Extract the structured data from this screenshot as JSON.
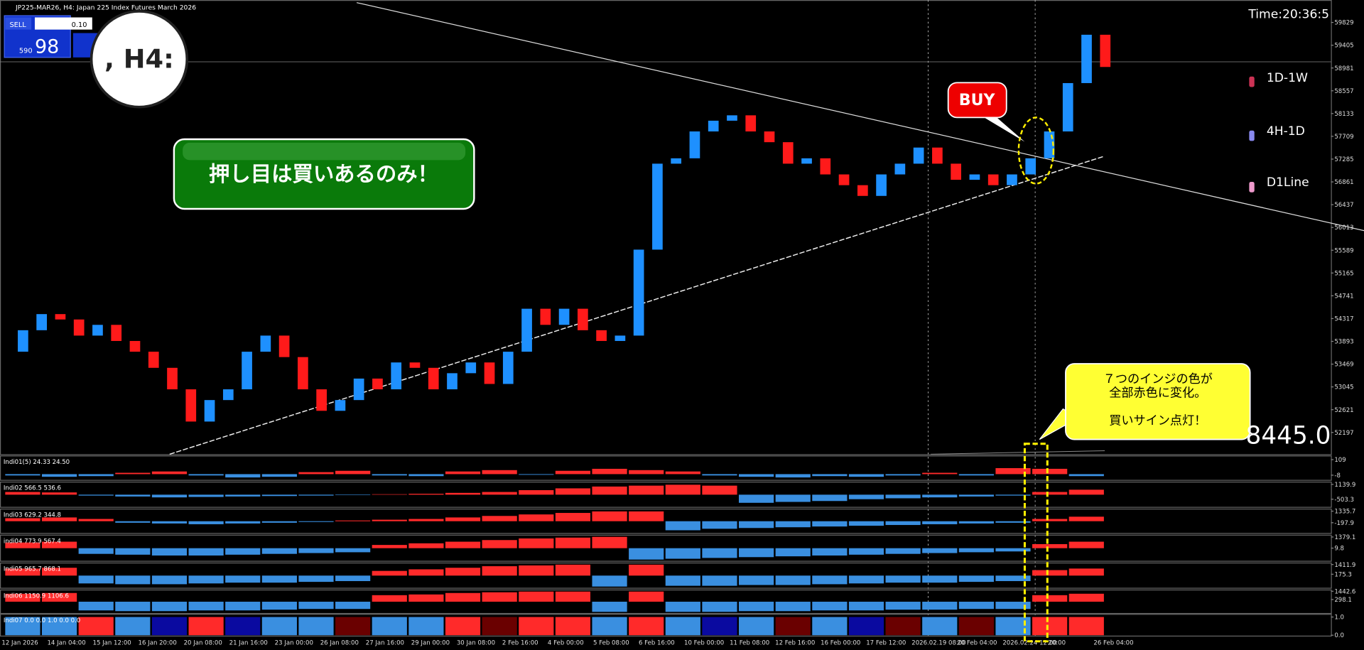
{
  "header": {
    "symbol": "JP225-MAR26, H4:  Japan 225 Index Futures March 2026",
    "sell": "SELL",
    "lot": "0.10",
    "price_small": "590",
    "price_big": "98",
    "magnifier": ", H4:",
    "time": "Time:20:36:5"
  },
  "annotations": {
    "slogan": "押し目は買いあるのみ！",
    "buy": "BUY",
    "callout": [
      "７つのインジの色が",
      "全部赤色に変化。",
      "買いサイン点灯！"
    ],
    "big_number": "8445.0"
  },
  "legend": [
    "1D-1W",
    "4H-1D",
    "D1Line"
  ],
  "chart_data": [
    {
      "type": "candlestick",
      "up_color": "#1e90ff",
      "down_color": "#ff1a1a",
      "values": [
        53700,
        54100,
        54400,
        54300,
        54000,
        54200,
        53900,
        53700,
        53400,
        53000,
        52400,
        52800,
        53000,
        53700,
        54000,
        53600,
        53000,
        52600,
        52800,
        53200,
        53000,
        53500,
        53400,
        53000,
        53300,
        53500,
        53100,
        53700,
        54500,
        54200,
        54500,
        54100,
        53900,
        54000,
        55600,
        57200,
        57300,
        57800,
        58000,
        58100,
        57800,
        57600,
        57200,
        57300,
        57000,
        56800,
        56600,
        57000,
        57200,
        57500,
        57200,
        56900,
        57000,
        56800,
        57000,
        57300,
        57800,
        58700,
        59600,
        59000
      ],
      "ylim": [
        51792,
        60198
      ],
      "yticks": [
        59829,
        59405,
        58981,
        58557,
        58133,
        57709,
        57285,
        56861,
        56437,
        56013,
        55589,
        55165,
        54741,
        54317,
        53893,
        53469,
        53045,
        52621,
        52197
      ],
      "x_axis_labels": [
        "12 Jan 2026",
        "14 Jan 04:00",
        "15 Jan 12:00",
        "16 Jan 20:00",
        "20 Jan 08:00",
        "21 Jan 16:00",
        "23 Jan 00:00",
        "26 Jan 08:00",
        "27 Jan 16:00",
        "29 Jan 00:00",
        "30 Jan 08:00",
        "2 Feb 16:00",
        "4 Feb 00:00",
        "5 Feb 08:00",
        "6 Feb 16:00",
        "10 Feb 00:00",
        "11 Feb 08:00",
        "12 Feb 16:00",
        "16 Feb 00:00",
        "17 Feb 12:00",
        "2026.02.19 08:00",
        "20 Feb 04:00",
        "2026.02.24 12:00",
        "20:00",
        "26 Feb 04:00"
      ]
    },
    {
      "type": "bar",
      "label": "Indi01(5) 24.33 24.50",
      "pos_color": "#ff2a2a",
      "neg_color": "#3a8fe0",
      "ylim": [
        -40,
        130
      ],
      "yticks": [
        109,
        -8
      ],
      "values": [
        -10,
        -20,
        -15,
        10,
        20,
        -10,
        -25,
        -20,
        15,
        25,
        -10,
        -15,
        20,
        30,
        -5,
        25,
        40,
        30,
        20,
        -10,
        -20,
        -25,
        -15,
        -20,
        -10,
        10,
        -10,
        45,
        40,
        -15
      ]
    },
    {
      "type": "bar",
      "label": "Indi02 566.5 536.6",
      "pos_color": "#ff2a2a",
      "neg_color": "#3a8fe0",
      "ylim": [
        -1300,
        1300
      ],
      "yticks": [
        1139.9,
        -503.3
      ],
      "values": [
        300,
        250,
        -100,
        -200,
        -300,
        -250,
        -200,
        -150,
        -100,
        -50,
        50,
        100,
        200,
        300,
        500,
        700,
        900,
        1000,
        1100,
        1000,
        -900,
        -800,
        -700,
        -500,
        -400,
        -300,
        -200,
        -100,
        300,
        550
      ]
    },
    {
      "type": "bar",
      "label": "Indi03 629.2 344.8",
      "pos_color": "#ff2a2a",
      "neg_color": "#3a8fe0",
      "ylim": [
        -1500,
        1500
      ],
      "yticks": [
        1335.7,
        -197.9
      ],
      "values": [
        400,
        500,
        300,
        -200,
        -300,
        -400,
        -300,
        -200,
        -100,
        100,
        200,
        300,
        500,
        700,
        900,
        1100,
        1300,
        1300,
        -1200,
        -1000,
        -900,
        -800,
        -700,
        -600,
        -500,
        -400,
        -300,
        -200,
        300,
        600
      ]
    },
    {
      "type": "bar",
      "label": "indi04 773.9 567.4",
      "pos_color": "#ff2a2a",
      "neg_color": "#3a8fe0",
      "ylim": [
        -1500,
        1500
      ],
      "yticks": [
        1379.1,
        9.8
      ],
      "values": [
        700,
        800,
        -700,
        -800,
        -900,
        -900,
        -800,
        -700,
        -600,
        -500,
        400,
        600,
        800,
        1000,
        1200,
        1300,
        1400,
        -1400,
        -1300,
        -1200,
        -1100,
        -1000,
        -900,
        -800,
        -700,
        -600,
        -500,
        -400,
        500,
        800
      ]
    },
    {
      "type": "bar",
      "label": "Indi05 965.7 868.1",
      "pos_color": "#ff2a2a",
      "neg_color": "#3a8fe0",
      "ylim": [
        -1500,
        1500
      ],
      "yticks": [
        1411.9,
        175.3
      ],
      "values": [
        900,
        1000,
        -1000,
        -1100,
        -1100,
        -1000,
        -900,
        -900,
        -800,
        -700,
        600,
        800,
        1000,
        1200,
        1300,
        1400,
        -1400,
        1400,
        -1300,
        -1300,
        -1200,
        -1200,
        -1100,
        -1000,
        -900,
        -900,
        -800,
        -700,
        700,
        900
      ]
    },
    {
      "type": "bar",
      "label": "Indi06 1150.9 1106.6",
      "pos_color": "#ff2a2a",
      "neg_color": "#3a8fe0",
      "ylim": [
        -1500,
        1500
      ],
      "yticks": [
        1442.6,
        298.1
      ],
      "values": [
        1100,
        1200,
        -1200,
        -1300,
        -1300,
        -1200,
        -1200,
        -1100,
        -1000,
        -1000,
        900,
        1000,
        1200,
        1300,
        1400,
        1400,
        -1400,
        1400,
        -1400,
        -1400,
        -1300,
        -1300,
        -1200,
        -1200,
        -1100,
        -1100,
        -1000,
        -1000,
        900,
        1100
      ]
    },
    {
      "type": "colorbar",
      "label": "Indi07 0.0 0.0 1.0 0.0 0.0",
      "ylim": [
        0,
        1.1
      ],
      "yticks": [
        {
          "value": 1,
          "label": "1.0"
        },
        {
          "value": 0,
          "label": "0.0"
        }
      ],
      "values": [
        1,
        1,
        1,
        1,
        1,
        1,
        1,
        1,
        1,
        1,
        1,
        1,
        1,
        1,
        1,
        1,
        1,
        1,
        1,
        1,
        1,
        1,
        1,
        1,
        1,
        1,
        1,
        1,
        1,
        1
      ],
      "colors": [
        "#3a8fe0",
        "#3a8fe0",
        "#ff2a2a",
        "#3a8fe0",
        "#0a0aa0",
        "#ff2a2a",
        "#0a0aa0",
        "#3a8fe0",
        "#3a8fe0",
        "#6a0000",
        "#3a8fe0",
        "#3a8fe0",
        "#ff2a2a",
        "#6a0000",
        "#ff2a2a",
        "#ff2a2a",
        "#3a8fe0",
        "#ff2a2a",
        "#3a8fe0",
        "#0a0aa0",
        "#3a8fe0",
        "#6a0000",
        "#3a8fe0",
        "#0a0aa0",
        "#6a0000",
        "#3a8fe0",
        "#6a0000",
        "#3a8fe0",
        "#ff2a2a",
        "#ff2a2a"
      ]
    }
  ]
}
